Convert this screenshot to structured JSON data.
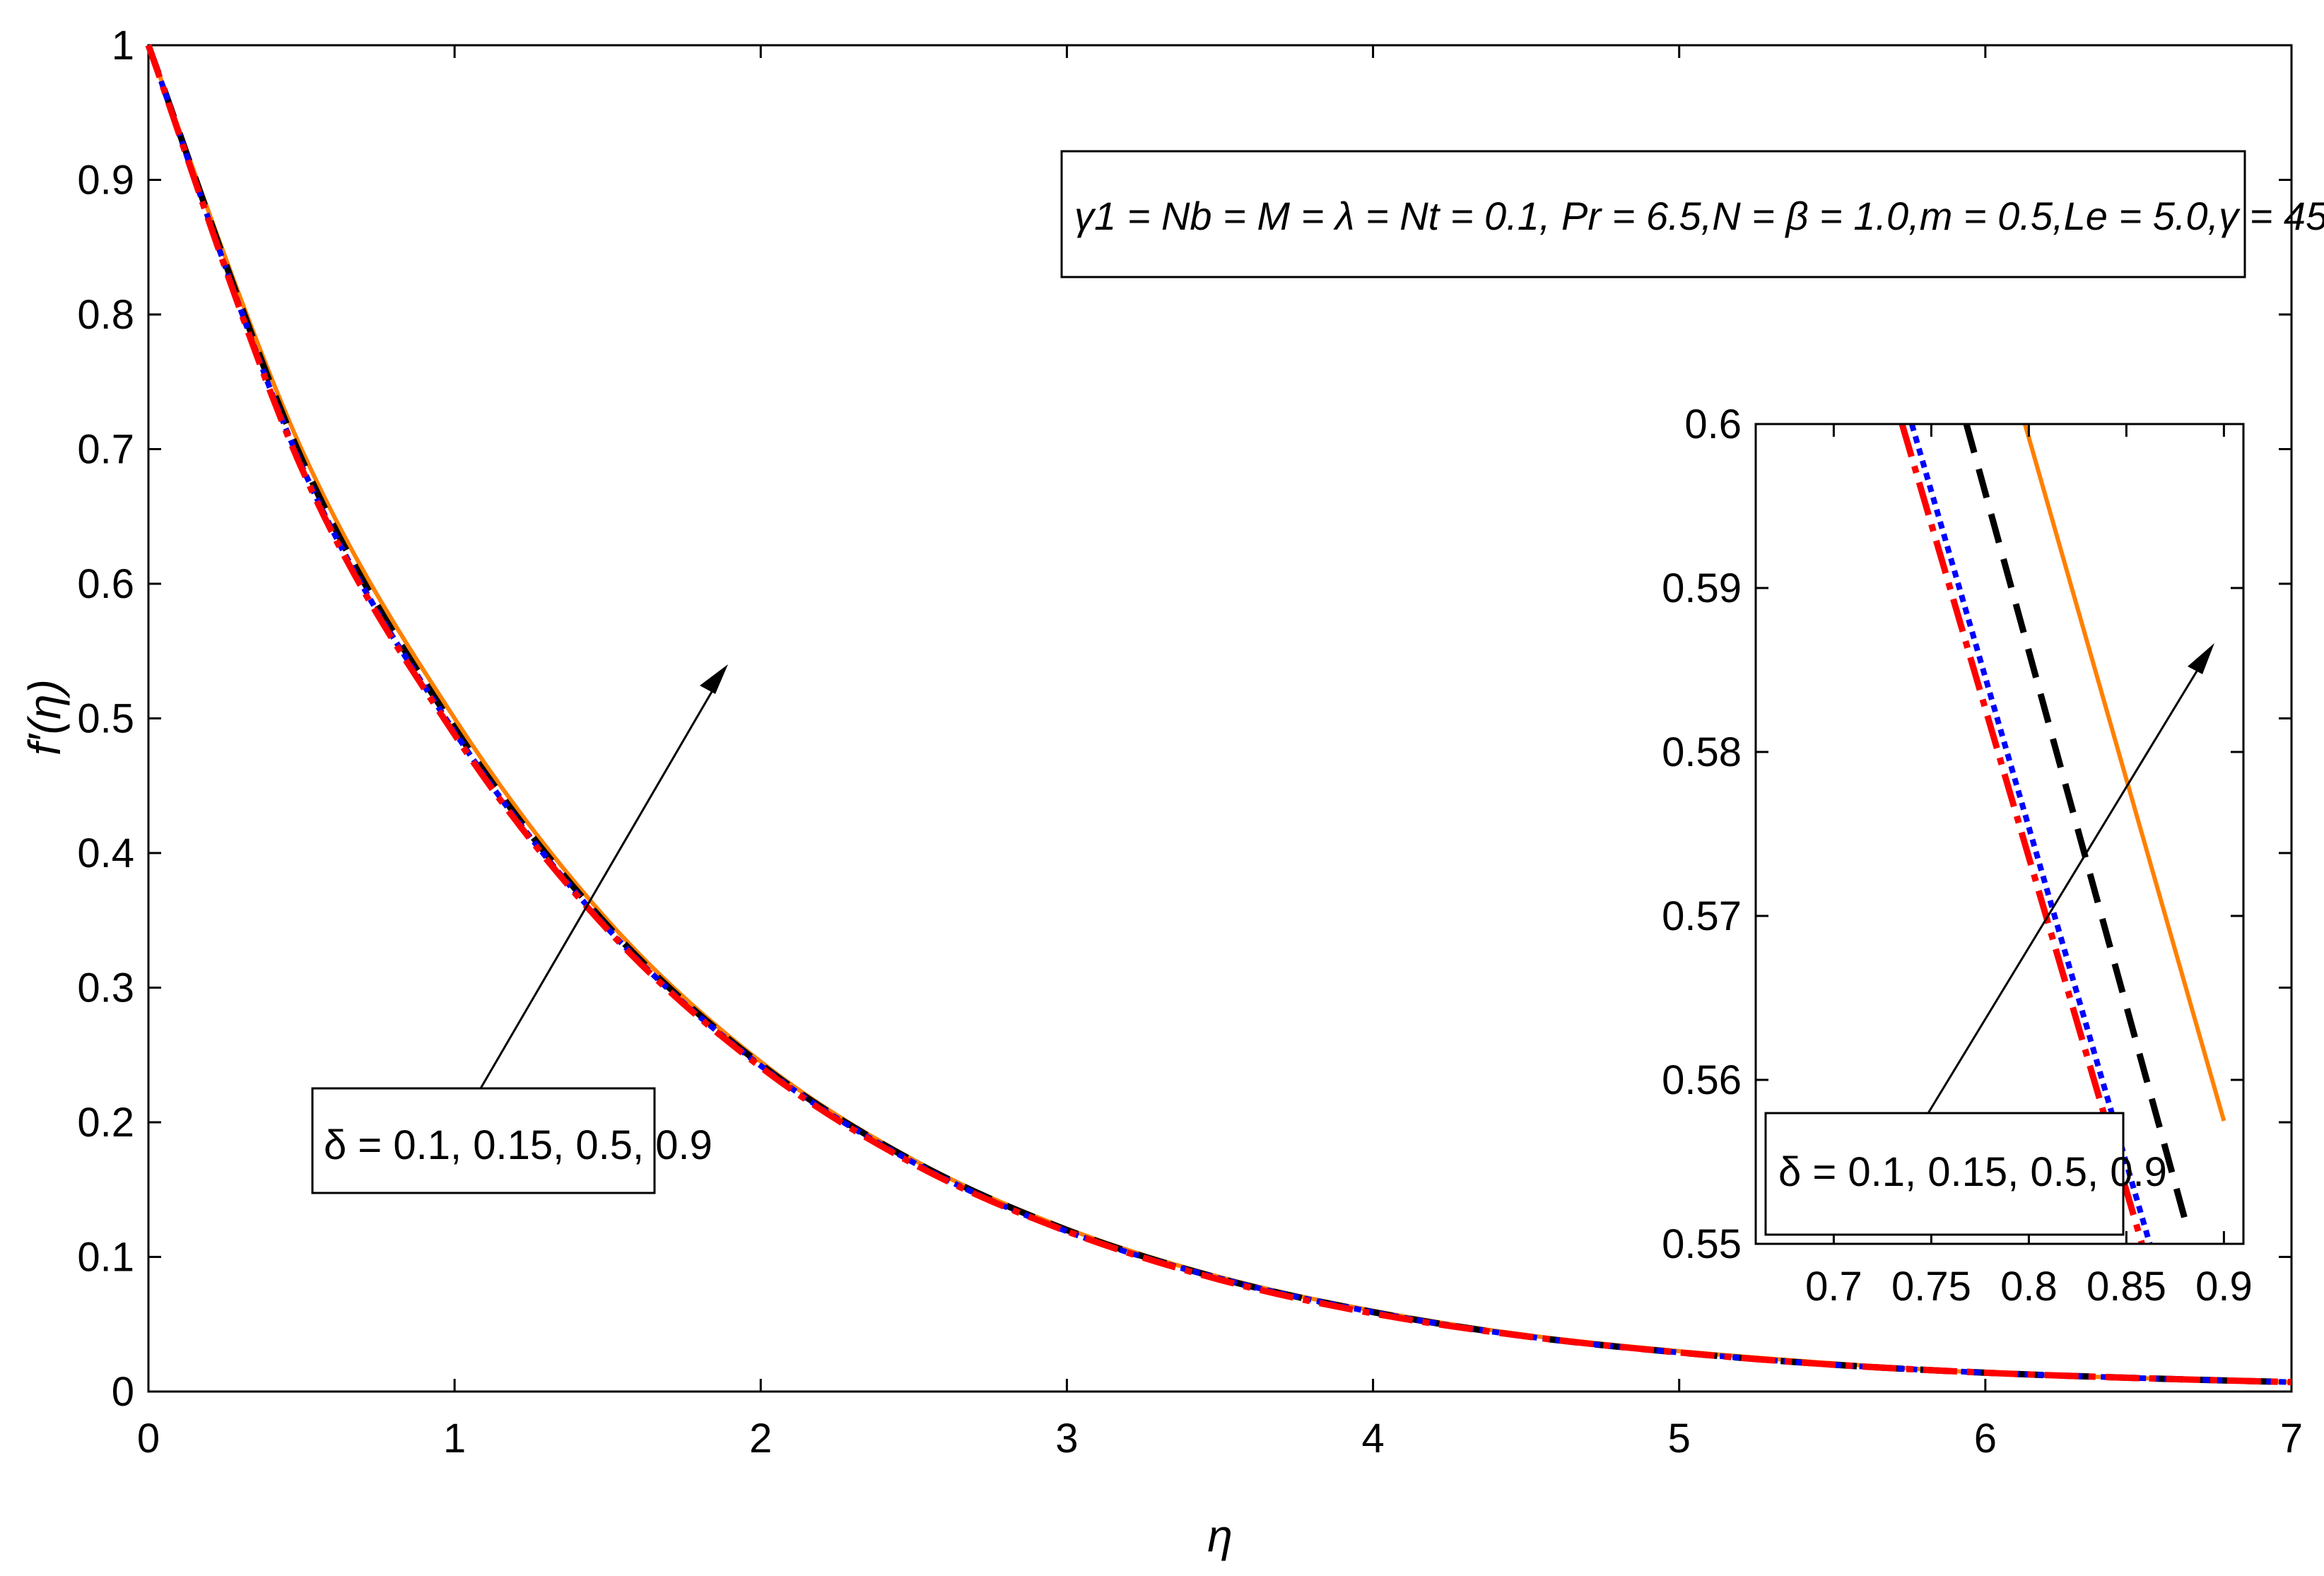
{
  "chart_data": [
    {
      "type": "line",
      "xlabel": "η",
      "ylabel": "f′(η)",
      "xlim": [
        0,
        7
      ],
      "ylim": [
        0,
        1
      ],
      "xticks": [
        "0",
        "1",
        "2",
        "3",
        "4",
        "5",
        "6",
        "7"
      ],
      "yticks": [
        "0",
        "0.1",
        "0.2",
        "0.3",
        "0.4",
        "0.5",
        "0.6",
        "0.7",
        "0.8",
        "0.9",
        "1"
      ],
      "grid": false,
      "parameter_note": "γ1 = Nb = M = λ = Nt = 0.1, Pr = 6.5,N = β = 1.0,m = 0.5,Le = 5.0,γ = 45",
      "parameter_note_sup": "0",
      "legend_text": "δ = 0.1, 0.15, 0.5, 0.9",
      "series": [
        {
          "style": "solid",
          "color": "#ff8000",
          "x": [
            0,
            0.5,
            1,
            1.5,
            2,
            2.5,
            3,
            3.5,
            4,
            4.5,
            5,
            5.5,
            6,
            6.5,
            7
          ],
          "y": [
            1,
            0.7,
            0.5,
            0.35,
            0.245,
            0.172,
            0.121,
            0.085,
            0.06,
            0.042,
            0.03,
            0.021,
            0.014,
            0.01,
            0.007
          ]
        },
        {
          "style": "dashed",
          "color": "#000000",
          "x": [
            0,
            0.5,
            1,
            1.5,
            2,
            2.5,
            3,
            3.5,
            4,
            4.5,
            5,
            5.5,
            6,
            6.5,
            7
          ],
          "y": [
            1,
            0.693,
            0.493,
            0.346,
            0.243,
            0.171,
            0.12,
            0.084,
            0.059,
            0.041,
            0.029,
            0.02,
            0.014,
            0.01,
            0.007
          ]
        },
        {
          "style": "dotted",
          "color": "#0000ff",
          "x": [
            0,
            0.5,
            1,
            1.5,
            2,
            2.5,
            3,
            3.5,
            4,
            4.5,
            5,
            5.5,
            6,
            6.5,
            7
          ],
          "y": [
            1,
            0.688,
            0.49,
            0.344,
            0.242,
            0.17,
            0.119,
            0.084,
            0.059,
            0.041,
            0.029,
            0.02,
            0.014,
            0.01,
            0.007
          ]
        },
        {
          "style": "dashdot",
          "color": "#ff0000",
          "x": [
            0,
            0.5,
            1,
            1.5,
            2,
            2.5,
            3,
            3.5,
            4,
            4.5,
            5,
            5.5,
            6,
            6.5,
            7
          ],
          "y": [
            1,
            0.686,
            0.488,
            0.343,
            0.241,
            0.169,
            0.119,
            0.083,
            0.058,
            0.041,
            0.029,
            0.02,
            0.014,
            0.01,
            0.007
          ]
        }
      ]
    },
    {
      "type": "line",
      "inset": true,
      "xlim": [
        0.66,
        0.91
      ],
      "ylim": [
        0.55,
        0.6
      ],
      "xticks": [
        "0.7",
        "0.75",
        "0.8",
        "0.85",
        "0.9"
      ],
      "yticks": [
        "0.55",
        "0.56",
        "0.57",
        "0.58",
        "0.59",
        "0.6"
      ],
      "legend_text": "δ = 0.1, 0.15, 0.5, 0.9",
      "series": [
        {
          "style": "solid",
          "color": "#ff8000",
          "x": [
            0.798,
            0.9
          ],
          "y": [
            0.6,
            0.5575
          ]
        },
        {
          "style": "dashed",
          "color": "#000000",
          "x": [
            0.768,
            0.88
          ],
          "y": [
            0.6,
            0.5515
          ]
        },
        {
          "style": "dotted",
          "color": "#0000ff",
          "x": [
            0.74,
            0.862
          ],
          "y": [
            0.6,
            0.55
          ]
        },
        {
          "style": "dashdot",
          "color": "#ff0000",
          "x": [
            0.735,
            0.858
          ],
          "y": [
            0.6,
            0.55
          ]
        }
      ]
    }
  ]
}
